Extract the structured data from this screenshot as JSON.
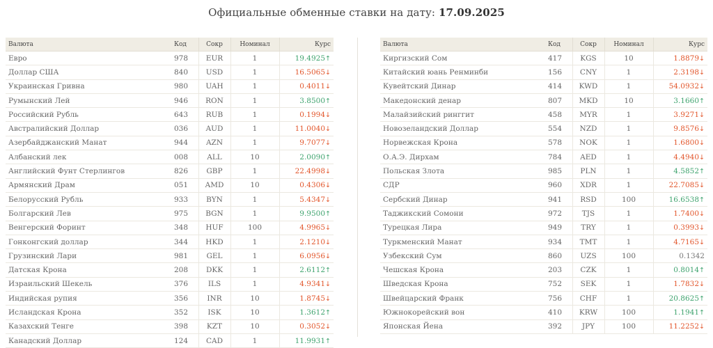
{
  "header": {
    "title_prefix": "Официальные обменные ставки на дату:",
    "date": "17.09.2025"
  },
  "columns": {
    "currency": "Валюта",
    "code": "Код",
    "abbr": "Сокр",
    "nominal": "Номинал",
    "rate": "Курс"
  },
  "colors": {
    "up": "#3ea36d",
    "down": "#e2552a",
    "flat": "#777777"
  },
  "left_rows": [
    {
      "name": "Евро",
      "code": "978",
      "abbr": "EUR",
      "nominal": "1",
      "rate": "19.4925",
      "dir": "up"
    },
    {
      "name": "Доллар США",
      "code": "840",
      "abbr": "USD",
      "nominal": "1",
      "rate": "16.5065",
      "dir": "down"
    },
    {
      "name": "Украинская Гривна",
      "code": "980",
      "abbr": "UAH",
      "nominal": "1",
      "rate": "0.4011",
      "dir": "down"
    },
    {
      "name": "Румынский Лей",
      "code": "946",
      "abbr": "RON",
      "nominal": "1",
      "rate": "3.8500",
      "dir": "up"
    },
    {
      "name": "Российский Рубль",
      "code": "643",
      "abbr": "RUB",
      "nominal": "1",
      "rate": "0.1994",
      "dir": "down"
    },
    {
      "name": "Австралийский Доллар",
      "code": "036",
      "abbr": "AUD",
      "nominal": "1",
      "rate": "11.0040",
      "dir": "down"
    },
    {
      "name": "Азербайджанский Манат",
      "code": "944",
      "abbr": "AZN",
      "nominal": "1",
      "rate": "9.7077",
      "dir": "down"
    },
    {
      "name": "Албанский лек",
      "code": "008",
      "abbr": "ALL",
      "nominal": "10",
      "rate": "2.0090",
      "dir": "up"
    },
    {
      "name": "Английский Фунт Стерлингов",
      "code": "826",
      "abbr": "GBP",
      "nominal": "1",
      "rate": "22.4998",
      "dir": "down"
    },
    {
      "name": "Армянский Драм",
      "code": "051",
      "abbr": "AMD",
      "nominal": "10",
      "rate": "0.4306",
      "dir": "down"
    },
    {
      "name": "Белорусский Рубль",
      "code": "933",
      "abbr": "BYN",
      "nominal": "1",
      "rate": "5.4347",
      "dir": "down"
    },
    {
      "name": "Болгарский Лев",
      "code": "975",
      "abbr": "BGN",
      "nominal": "1",
      "rate": "9.9500",
      "dir": "up"
    },
    {
      "name": "Венгерский Форинт",
      "code": "348",
      "abbr": "HUF",
      "nominal": "100",
      "rate": "4.9965",
      "dir": "down"
    },
    {
      "name": "Гонконгский доллар",
      "code": "344",
      "abbr": "HKD",
      "nominal": "1",
      "rate": "2.1210",
      "dir": "down"
    },
    {
      "name": "Грузинский Лари",
      "code": "981",
      "abbr": "GEL",
      "nominal": "1",
      "rate": "6.0956",
      "dir": "down"
    },
    {
      "name": "Датская Крона",
      "code": "208",
      "abbr": "DKK",
      "nominal": "1",
      "rate": "2.6112",
      "dir": "up"
    },
    {
      "name": "Израильский Шекель",
      "code": "376",
      "abbr": "ILS",
      "nominal": "1",
      "rate": "4.9341",
      "dir": "down"
    },
    {
      "name": "Индийская рупия",
      "code": "356",
      "abbr": "INR",
      "nominal": "10",
      "rate": "1.8745",
      "dir": "down"
    },
    {
      "name": "Исландская Крона",
      "code": "352",
      "abbr": "ISK",
      "nominal": "10",
      "rate": "1.3612",
      "dir": "up"
    },
    {
      "name": "Казахский Тенге",
      "code": "398",
      "abbr": "KZT",
      "nominal": "10",
      "rate": "0.3052",
      "dir": "down"
    },
    {
      "name": "Канадский Доллар",
      "code": "124",
      "abbr": "CAD",
      "nominal": "1",
      "rate": "11.9931",
      "dir": "up"
    }
  ],
  "right_rows": [
    {
      "name": "Киргизский Сом",
      "code": "417",
      "abbr": "KGS",
      "nominal": "10",
      "rate": "1.8879",
      "dir": "down"
    },
    {
      "name": "Китайский юань Ренминби",
      "code": "156",
      "abbr": "CNY",
      "nominal": "1",
      "rate": "2.3198",
      "dir": "down"
    },
    {
      "name": "Кувейтский Динар",
      "code": "414",
      "abbr": "KWD",
      "nominal": "1",
      "rate": "54.0932",
      "dir": "down"
    },
    {
      "name": "Македонский денар",
      "code": "807",
      "abbr": "MKD",
      "nominal": "10",
      "rate": "3.1660",
      "dir": "up"
    },
    {
      "name": "Малайзийский ринггит",
      "code": "458",
      "abbr": "MYR",
      "nominal": "1",
      "rate": "3.9271",
      "dir": "down"
    },
    {
      "name": "Новозеландский Доллар",
      "code": "554",
      "abbr": "NZD",
      "nominal": "1",
      "rate": "9.8576",
      "dir": "down"
    },
    {
      "name": "Норвежская Крона",
      "code": "578",
      "abbr": "NOK",
      "nominal": "1",
      "rate": "1.6800",
      "dir": "down"
    },
    {
      "name": "О.А.Э. Дирхам",
      "code": "784",
      "abbr": "AED",
      "nominal": "1",
      "rate": "4.4940",
      "dir": "down"
    },
    {
      "name": "Польская Злота",
      "code": "985",
      "abbr": "PLN",
      "nominal": "1",
      "rate": "4.5852",
      "dir": "up"
    },
    {
      "name": "СДР",
      "code": "960",
      "abbr": "XDR",
      "nominal": "1",
      "rate": "22.7085",
      "dir": "down"
    },
    {
      "name": "Сербский Динар",
      "code": "941",
      "abbr": "RSD",
      "nominal": "100",
      "rate": "16.6538",
      "dir": "up"
    },
    {
      "name": "Таджикский Сомони",
      "code": "972",
      "abbr": "TJS",
      "nominal": "1",
      "rate": "1.7400",
      "dir": "down"
    },
    {
      "name": "Турецкая Лира",
      "code": "949",
      "abbr": "TRY",
      "nominal": "1",
      "rate": "0.3993",
      "dir": "down"
    },
    {
      "name": "Туркменский Манат",
      "code": "934",
      "abbr": "TMT",
      "nominal": "1",
      "rate": "4.7165",
      "dir": "down"
    },
    {
      "name": "Узбекский Сум",
      "code": "860",
      "abbr": "UZS",
      "nominal": "100",
      "rate": "0.1342",
      "dir": "flat"
    },
    {
      "name": "Чешская Крона",
      "code": "203",
      "abbr": "CZK",
      "nominal": "1",
      "rate": "0.8014",
      "dir": "up"
    },
    {
      "name": "Шведская Крона",
      "code": "752",
      "abbr": "SEK",
      "nominal": "1",
      "rate": "1.7832",
      "dir": "down"
    },
    {
      "name": "Швейцарский Франк",
      "code": "756",
      "abbr": "CHF",
      "nominal": "1",
      "rate": "20.8625",
      "dir": "up"
    },
    {
      "name": "Южнокорейский вон",
      "code": "410",
      "abbr": "KRW",
      "nominal": "100",
      "rate": "1.1941",
      "dir": "up"
    },
    {
      "name": "Японская Йена",
      "code": "392",
      "abbr": "JPY",
      "nominal": "100",
      "rate": "11.2252",
      "dir": "down"
    }
  ]
}
